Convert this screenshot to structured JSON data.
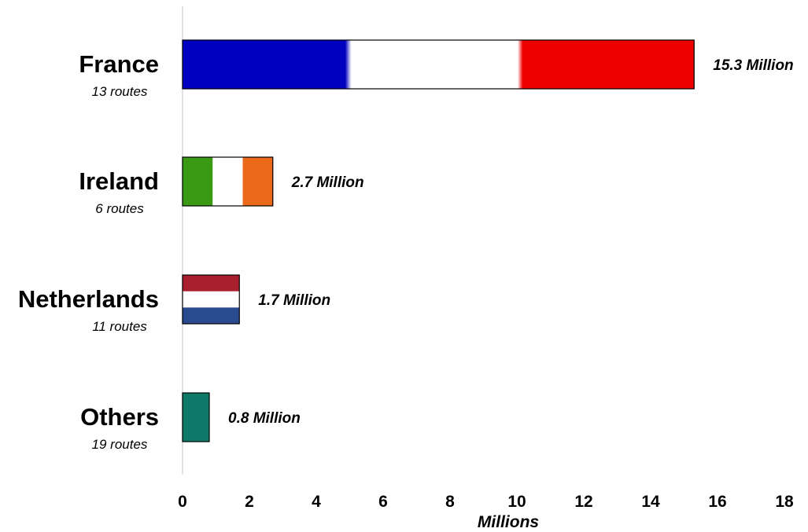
{
  "chart_data": {
    "type": "bar",
    "orientation": "horizontal",
    "categories": [
      "France",
      "Ireland",
      "Netherlands",
      "Others"
    ],
    "subtitles": [
      "13 routes",
      "6 routes",
      "11 routes",
      "19 routes"
    ],
    "values": [
      15.3,
      2.7,
      1.7,
      0.8
    ],
    "value_labels": [
      "15.3 Million",
      "2.7 Million",
      "1.7 Million",
      "0.8 Million"
    ],
    "xlabel": "Millions",
    "xlim": [
      0,
      18
    ],
    "xticks": [
      0,
      2,
      4,
      6,
      8,
      10,
      12,
      14,
      16,
      18
    ],
    "grid": false,
    "bar_styles": [
      {
        "kind": "vertical-stripes",
        "colors": [
          "#0000c0",
          "#ffffff",
          "#ee0000"
        ]
      },
      {
        "kind": "vertical-stripes",
        "colors": [
          "#3a9a14",
          "#ffffff",
          "#ea6a1a"
        ]
      },
      {
        "kind": "horizontal-stripes",
        "colors": [
          "#aa1f2e",
          "#ffffff",
          "#2a4a90"
        ]
      },
      {
        "kind": "solid",
        "colors": [
          "#0d7a6a"
        ]
      }
    ]
  }
}
